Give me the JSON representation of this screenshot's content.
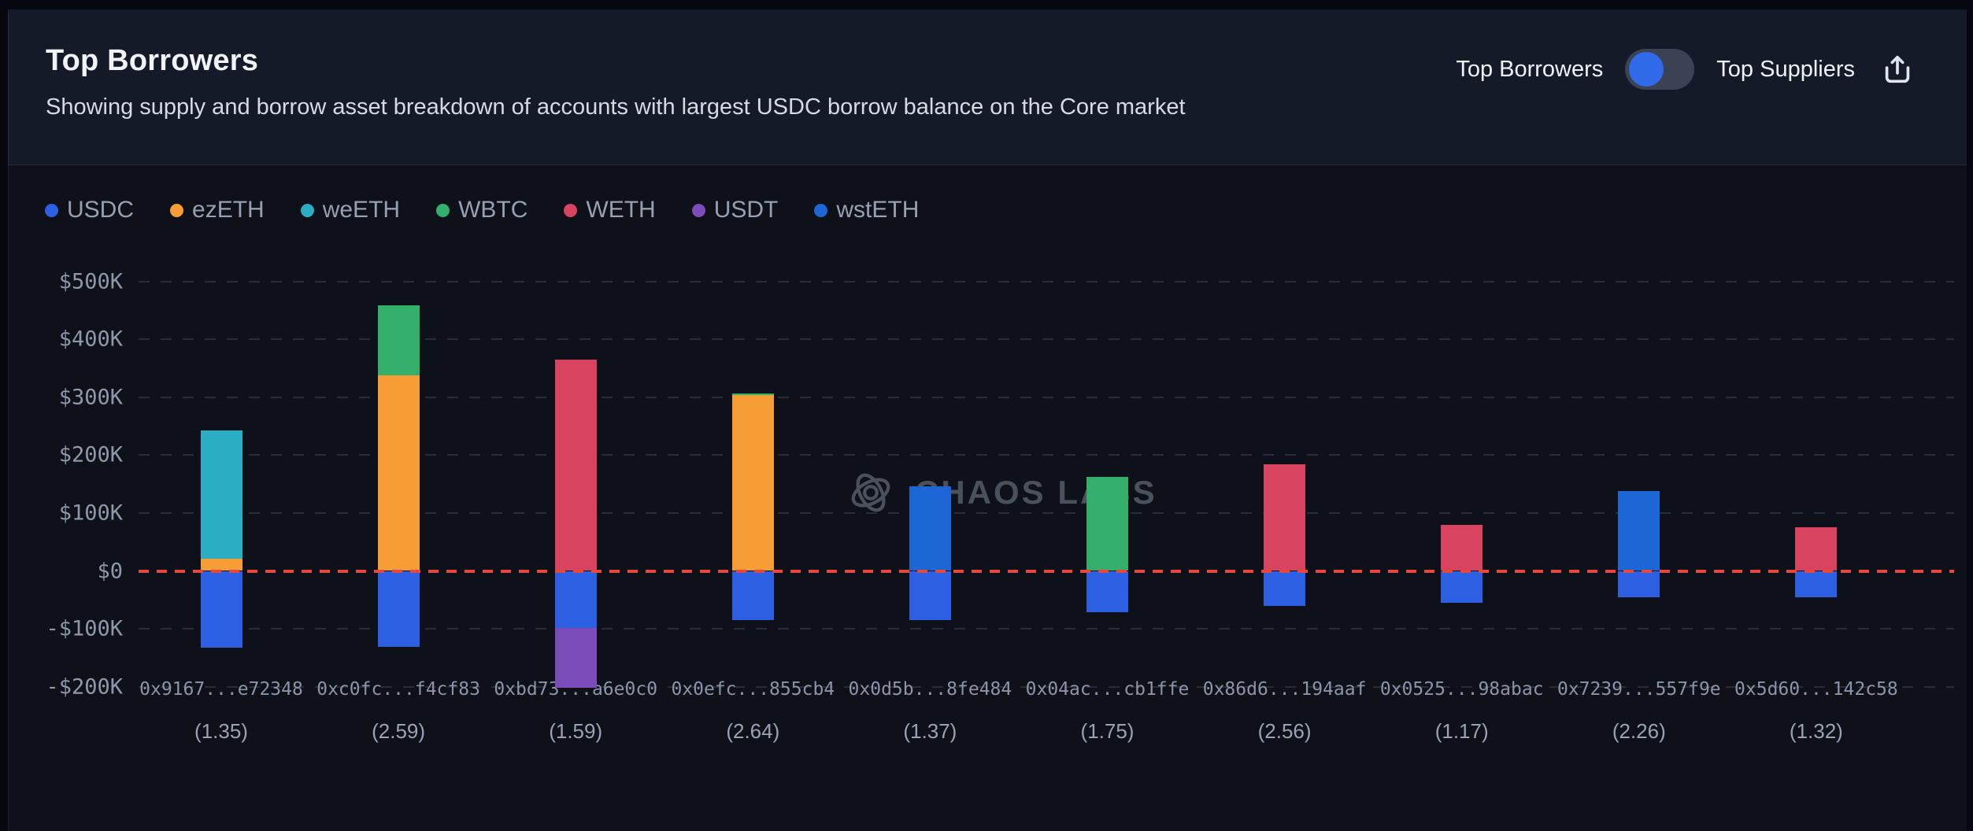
{
  "header": {
    "title": "Top Borrowers",
    "subtitle": "Showing supply and borrow asset breakdown of accounts with largest USDC borrow balance on the Core market",
    "toggle": {
      "left_label": "Top Borrowers",
      "right_label": "Top Suppliers",
      "selected": "Top Borrowers",
      "knob_color": "#2f6ae9",
      "track_color": "#3a4253"
    }
  },
  "watermark": {
    "text": "CHAOS LABS"
  },
  "colors": {
    "header_bg": "#151a29",
    "chart_bg": "#0e1119",
    "gridline": "#3c4351",
    "zero_line": "#e8473c",
    "axis_text": "#8f98ab"
  },
  "chart_data": {
    "type": "bar",
    "stacked": true,
    "unit": "USD (thousands)",
    "legend_position": "top-left",
    "grid": "dashed-horizontal",
    "y_axis": {
      "ticks": [
        "$500K",
        "$400K",
        "$300K",
        "$200K",
        "$100K",
        "$0",
        "-$100K",
        "-$200K"
      ],
      "tick_values": [
        500,
        400,
        300,
        200,
        100,
        0,
        -100,
        -200
      ],
      "range": [
        -200,
        500
      ],
      "zero_line": "dashed-red"
    },
    "series": [
      {
        "name": "USDC",
        "color": "#2d5fe2"
      },
      {
        "name": "ezETH",
        "color": "#f79d36"
      },
      {
        "name": "weETH",
        "color": "#2badc4"
      },
      {
        "name": "WBTC",
        "color": "#33ae6b"
      },
      {
        "name": "WETH",
        "color": "#d8435f"
      },
      {
        "name": "USDT",
        "color": "#7c4cba"
      },
      {
        "name": "wstETH",
        "color": "#1d66d6"
      }
    ],
    "accounts": [
      {
        "address": "0x9167...e72348",
        "health_factor": "(1.35)",
        "values": {
          "ezETH": 21,
          "weETH": 222,
          "USDC": -133
        }
      },
      {
        "address": "0xc0fc...f4cf83",
        "health_factor": "(2.59)",
        "values": {
          "ezETH": 337,
          "WBTC": 122,
          "USDC": -131
        }
      },
      {
        "address": "0xbd73...a6e0c0",
        "health_factor": "(1.59)",
        "values": {
          "WETH": 365,
          "USDC": -99,
          "USDT": -103
        }
      },
      {
        "address": "0x0efc...855cb4",
        "health_factor": "(2.64)",
        "values": {
          "ezETH": 304,
          "WBTC": 3,
          "USDC": -85
        }
      },
      {
        "address": "0x0d5b...8fe484",
        "health_factor": "(1.37)",
        "values": {
          "wstETH": 146,
          "USDC": -85
        }
      },
      {
        "address": "0x04ac...cb1ffe",
        "health_factor": "(1.75)",
        "values": {
          "WBTC": 162,
          "USDC": -71
        }
      },
      {
        "address": "0x86d6...194aaf",
        "health_factor": "(2.56)",
        "values": {
          "WETH": 184,
          "USDC": -60
        }
      },
      {
        "address": "0x0525...98abac",
        "health_factor": "(1.17)",
        "values": {
          "WETH": 80,
          "USDC": -55
        }
      },
      {
        "address": "0x7239...557f9e",
        "health_factor": "(2.26)",
        "values": {
          "wstETH": 138,
          "USDC": -46
        }
      },
      {
        "address": "0x5d60...142c58",
        "health_factor": "(1.32)",
        "values": {
          "WETH": 75,
          "USDC": -45
        }
      }
    ]
  }
}
